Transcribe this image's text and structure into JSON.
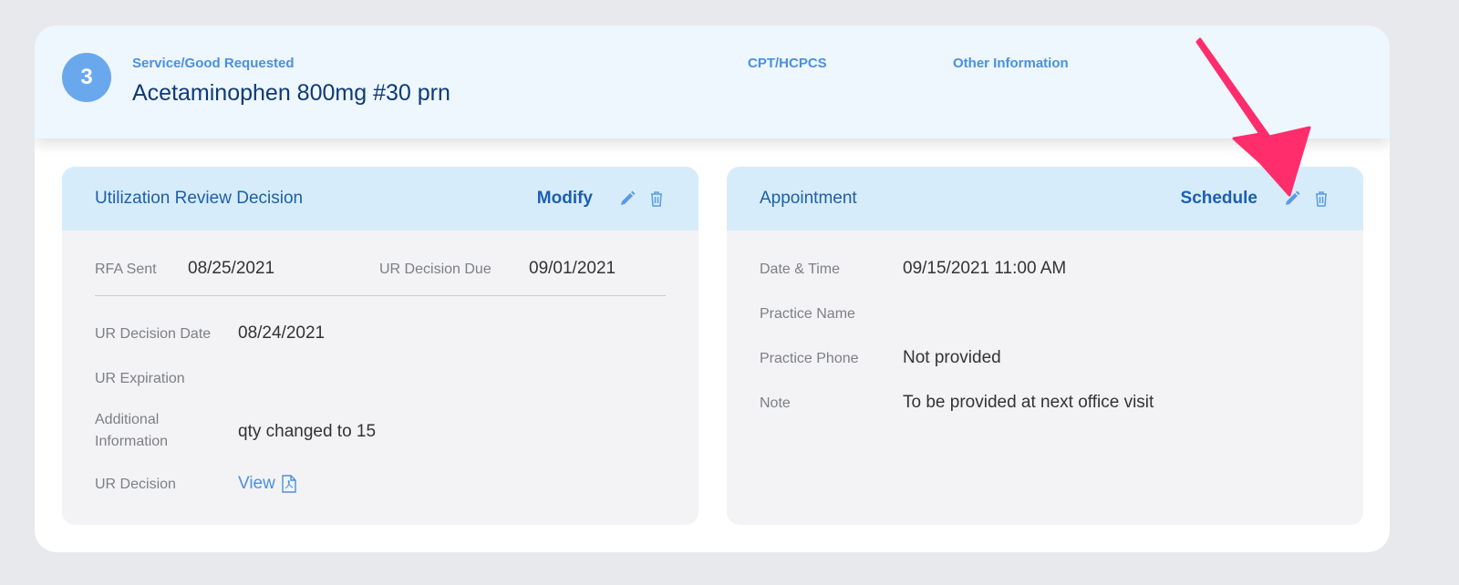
{
  "header": {
    "number": "3",
    "service_label": "Service/Good Requested",
    "service_value": "Acetaminophen 800mg #30 prn",
    "cpt_label": "CPT/HCPCS",
    "other_label": "Other Information"
  },
  "ur": {
    "title": "Utilization Review Decision",
    "action": "Modify",
    "rfa_sent_label": "RFA Sent",
    "rfa_sent": "08/25/2021",
    "due_label": "UR Decision Due",
    "due": "09/01/2021",
    "date_label": "UR Decision Date",
    "date": "08/24/2021",
    "exp_label": "UR Expiration",
    "add_label_1": "Additional",
    "add_label_2": "Information",
    "add": "qty changed to 15",
    "decision_label": "UR Decision",
    "view": "View"
  },
  "appt": {
    "title": "Appointment",
    "action": "Schedule",
    "dt_label": "Date & Time",
    "dt": "09/15/2021 11:00 AM",
    "practice_label": "Practice Name",
    "phone_label": "Practice Phone",
    "phone": "Not provided",
    "note_label": "Note",
    "note": "To be provided at next office visit"
  },
  "colors": {
    "accent": "#4a90e2",
    "arrow": "#ff2d6b",
    "header_bg": "#eef6fe",
    "panel_header_bg": "#d7ecfb"
  },
  "icons": [
    "pencil-icon",
    "trash-icon",
    "pdf-icon",
    "arrow-annotation"
  ]
}
